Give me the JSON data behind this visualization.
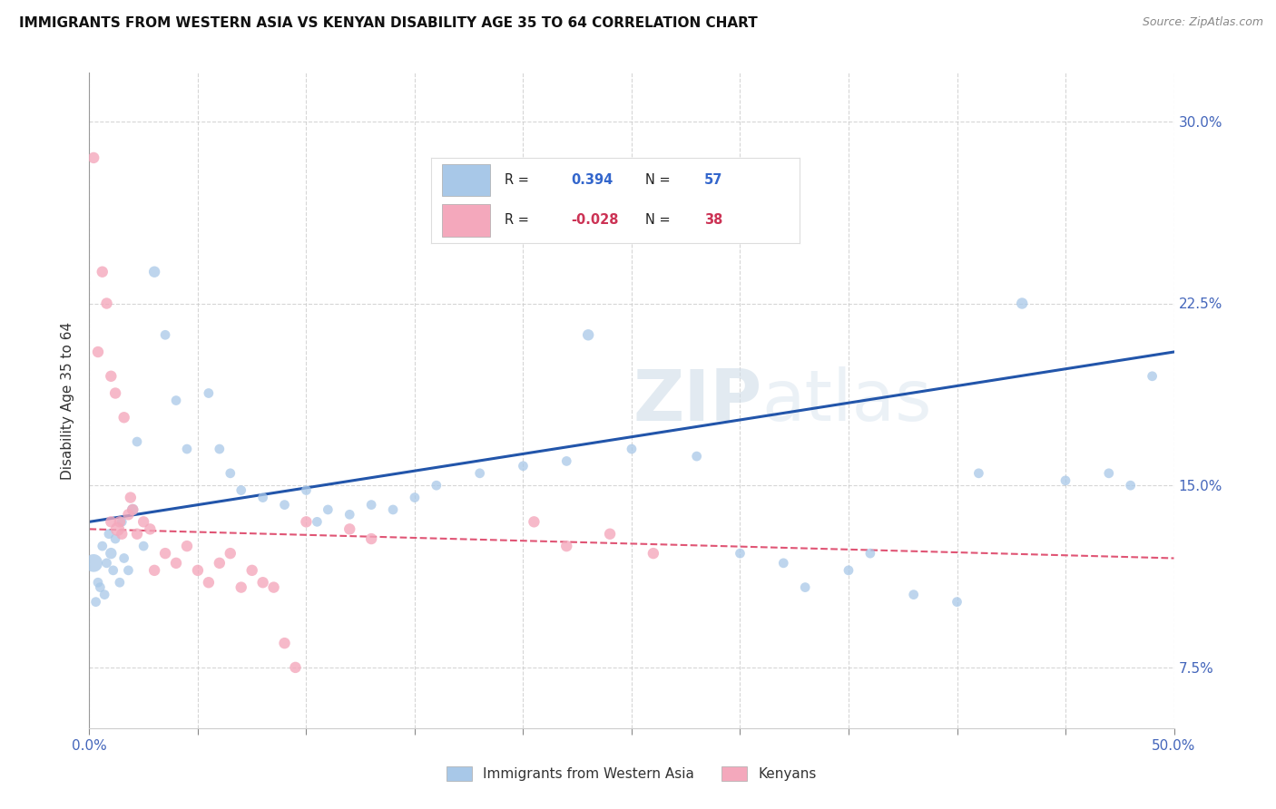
{
  "title": "IMMIGRANTS FROM WESTERN ASIA VS KENYAN DISABILITY AGE 35 TO 64 CORRELATION CHART",
  "source": "Source: ZipAtlas.com",
  "ylabel": "Disability Age 35 to 64",
  "legend_label_blue": "Immigrants from Western Asia",
  "legend_label_pink": "Kenyans",
  "blue_color": "#a8c8e8",
  "pink_color": "#f4a8bc",
  "blue_line_color": "#2255aa",
  "pink_line_color": "#e05575",
  "watermark_zip": "ZIP",
  "watermark_atlas": "atlas",
  "blue_points": [
    [
      0.2,
      11.8
    ],
    [
      0.3,
      10.2
    ],
    [
      0.4,
      11.0
    ],
    [
      0.5,
      10.8
    ],
    [
      0.6,
      12.5
    ],
    [
      0.7,
      10.5
    ],
    [
      0.8,
      11.8
    ],
    [
      0.9,
      13.0
    ],
    [
      1.0,
      12.2
    ],
    [
      1.1,
      11.5
    ],
    [
      1.2,
      12.8
    ],
    [
      1.4,
      11.0
    ],
    [
      1.5,
      13.5
    ],
    [
      1.6,
      12.0
    ],
    [
      1.8,
      11.5
    ],
    [
      2.0,
      14.0
    ],
    [
      2.2,
      16.8
    ],
    [
      2.5,
      12.5
    ],
    [
      3.0,
      23.8
    ],
    [
      3.5,
      21.2
    ],
    [
      4.0,
      18.5
    ],
    [
      4.5,
      16.5
    ],
    [
      5.5,
      18.8
    ],
    [
      6.0,
      16.5
    ],
    [
      6.5,
      15.5
    ],
    [
      7.0,
      14.8
    ],
    [
      8.0,
      14.5
    ],
    [
      9.0,
      14.2
    ],
    [
      10.0,
      14.8
    ],
    [
      10.5,
      13.5
    ],
    [
      11.0,
      14.0
    ],
    [
      12.0,
      13.8
    ],
    [
      13.0,
      14.2
    ],
    [
      14.0,
      14.0
    ],
    [
      15.0,
      14.5
    ],
    [
      16.0,
      15.0
    ],
    [
      18.0,
      15.5
    ],
    [
      20.0,
      15.8
    ],
    [
      22.0,
      16.0
    ],
    [
      23.0,
      21.2
    ],
    [
      25.0,
      16.5
    ],
    [
      28.0,
      16.2
    ],
    [
      30.0,
      12.2
    ],
    [
      32.0,
      11.8
    ],
    [
      33.0,
      10.8
    ],
    [
      35.0,
      11.5
    ],
    [
      36.0,
      12.2
    ],
    [
      38.0,
      10.5
    ],
    [
      40.0,
      10.2
    ],
    [
      41.0,
      15.5
    ],
    [
      43.0,
      22.5
    ],
    [
      45.0,
      15.2
    ],
    [
      47.0,
      15.5
    ],
    [
      48.0,
      15.0
    ],
    [
      49.0,
      19.5
    ]
  ],
  "blue_sizes": [
    200,
    60,
    60,
    60,
    60,
    60,
    60,
    60,
    80,
    60,
    60,
    60,
    60,
    60,
    60,
    80,
    60,
    60,
    80,
    60,
    60,
    60,
    60,
    60,
    60,
    60,
    60,
    60,
    60,
    60,
    60,
    60,
    60,
    60,
    60,
    60,
    60,
    60,
    60,
    80,
    60,
    60,
    60,
    60,
    60,
    60,
    60,
    60,
    60,
    60,
    80,
    60,
    60,
    60,
    60
  ],
  "pink_points": [
    [
      0.2,
      28.5
    ],
    [
      0.4,
      20.5
    ],
    [
      0.6,
      23.8
    ],
    [
      0.8,
      22.5
    ],
    [
      1.0,
      19.5
    ],
    [
      1.0,
      13.5
    ],
    [
      1.2,
      18.8
    ],
    [
      1.3,
      13.2
    ],
    [
      1.4,
      13.5
    ],
    [
      1.5,
      13.0
    ],
    [
      1.6,
      17.8
    ],
    [
      1.8,
      13.8
    ],
    [
      1.9,
      14.5
    ],
    [
      2.0,
      14.0
    ],
    [
      2.2,
      13.0
    ],
    [
      2.5,
      13.5
    ],
    [
      2.8,
      13.2
    ],
    [
      3.0,
      11.5
    ],
    [
      3.5,
      12.2
    ],
    [
      4.0,
      11.8
    ],
    [
      4.5,
      12.5
    ],
    [
      5.0,
      11.5
    ],
    [
      5.5,
      11.0
    ],
    [
      6.0,
      11.8
    ],
    [
      6.5,
      12.2
    ],
    [
      7.0,
      10.8
    ],
    [
      7.5,
      11.5
    ],
    [
      8.0,
      11.0
    ],
    [
      8.5,
      10.8
    ],
    [
      9.0,
      8.5
    ],
    [
      9.5,
      7.5
    ],
    [
      10.0,
      13.5
    ],
    [
      12.0,
      13.2
    ],
    [
      13.0,
      12.8
    ],
    [
      20.5,
      13.5
    ],
    [
      22.0,
      12.5
    ],
    [
      24.0,
      13.0
    ],
    [
      26.0,
      12.2
    ]
  ],
  "pink_sizes": [
    80,
    80,
    80,
    80,
    80,
    80,
    80,
    120,
    80,
    80,
    80,
    80,
    80,
    80,
    80,
    80,
    80,
    80,
    80,
    80,
    80,
    80,
    80,
    80,
    80,
    80,
    80,
    80,
    80,
    80,
    80,
    80,
    80,
    80,
    80,
    80,
    80,
    80
  ],
  "xlim": [
    0,
    50
  ],
  "ylim": [
    5.0,
    32.0
  ],
  "ytick_vals": [
    7.5,
    15.0,
    22.5,
    30.0
  ],
  "xtick_vals": [
    0,
    5,
    10,
    15,
    20,
    25,
    30,
    35,
    40,
    45,
    50
  ],
  "blue_trend_x": [
    0,
    50
  ],
  "blue_trend_y": [
    13.5,
    20.5
  ],
  "pink_trend_x": [
    0,
    50
  ],
  "pink_trend_y": [
    13.2,
    12.0
  ]
}
